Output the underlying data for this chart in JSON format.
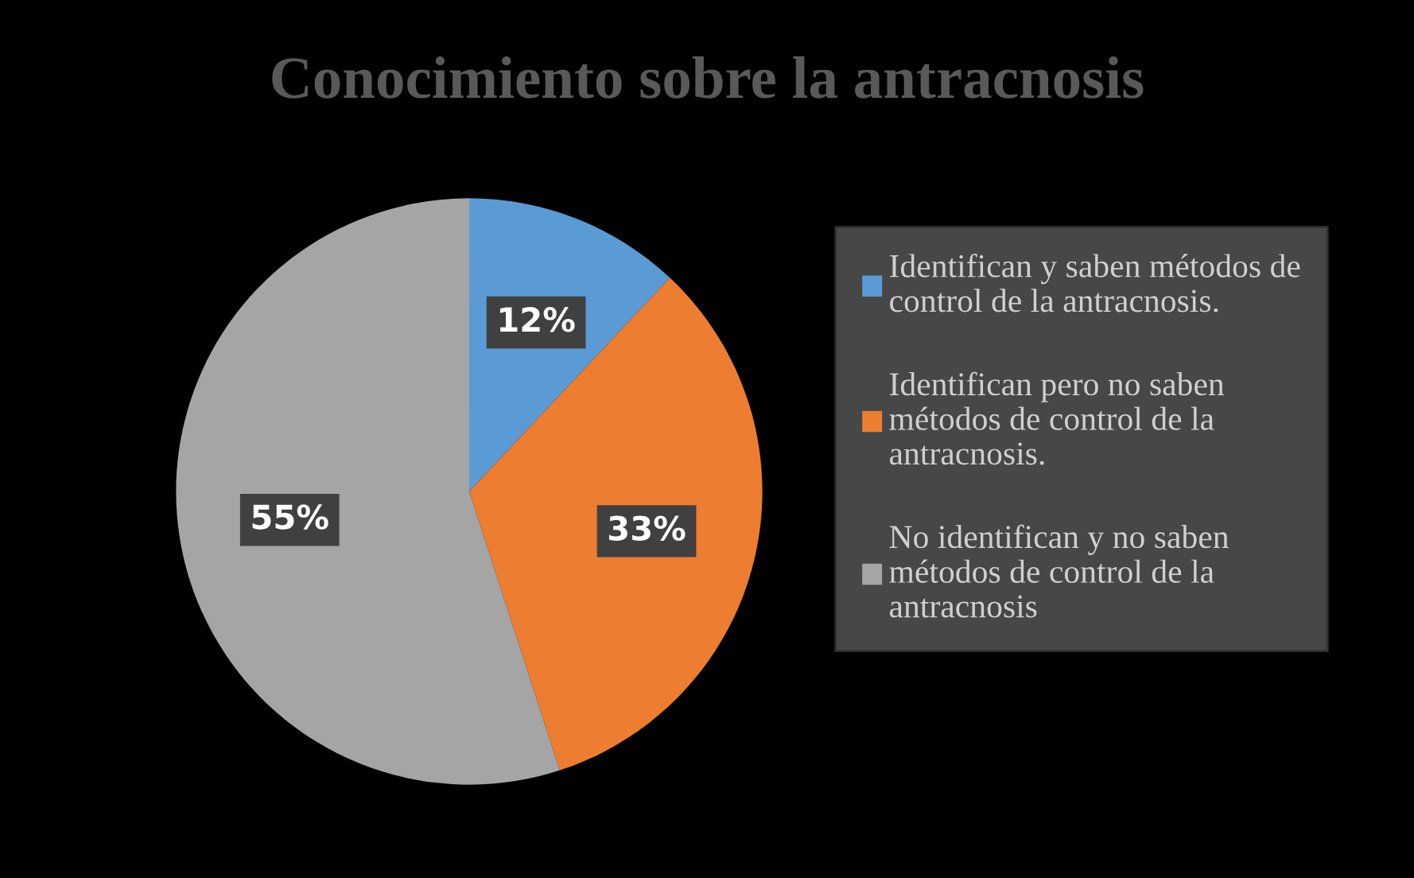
{
  "chart_data": {
    "type": "pie",
    "title": "Conocimiento sobre la antracnosis",
    "categories": [
      "Identifican y saben métodos de\ncontrol de la antracnosis.",
      "Identifican pero no saben\nmétodos de control de la\nantracnosis.",
      "No identifican y no saben\nmétodos de control de la\nantracnosis"
    ],
    "values": [
      12,
      33,
      55
    ],
    "colors": [
      "#5b9bd5",
      "#ed7d31",
      "#a5a5a5"
    ],
    "value_labels": [
      "12%",
      "33%",
      "55%"
    ],
    "legend": "right"
  }
}
